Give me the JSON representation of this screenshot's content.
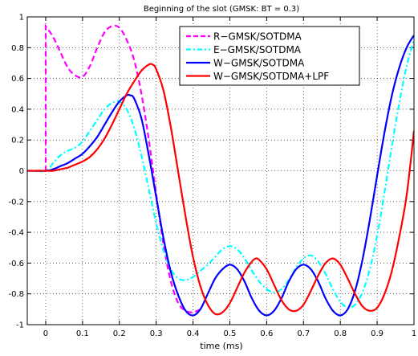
{
  "chart_data": {
    "type": "line",
    "title": "Beginning of the slot (GMSK: BT = 0.3)",
    "xlabel": "time (ms)",
    "ylabel": "",
    "xlim": [
      -0.05,
      1.0
    ],
    "ylim": [
      -1.0,
      1.0
    ],
    "xticks": [
      0,
      0.1,
      0.2,
      0.3,
      0.4,
      0.5,
      0.6,
      0.7,
      0.8,
      0.9,
      1
    ],
    "yticks": [
      -1,
      -0.8,
      -0.6,
      -0.4,
      -0.2,
      0,
      0.2,
      0.4,
      0.6,
      0.8,
      1
    ],
    "grid": true,
    "legend_position": "top-right",
    "series": [
      {
        "name": "R−GMSK/SOTDMA",
        "color": "#ff00ff",
        "style": "dashed",
        "points": [
          [
            -0.05,
            0
          ],
          [
            0,
            0
          ],
          [
            0,
            0.94
          ],
          [
            0.02,
            0.87
          ],
          [
            0.04,
            0.77
          ],
          [
            0.06,
            0.67
          ],
          [
            0.08,
            0.62
          ],
          [
            0.1,
            0.61
          ],
          [
            0.12,
            0.68
          ],
          [
            0.14,
            0.8
          ],
          [
            0.16,
            0.9
          ],
          [
            0.18,
            0.94
          ],
          [
            0.2,
            0.93
          ],
          [
            0.22,
            0.85
          ],
          [
            0.24,
            0.72
          ],
          [
            0.26,
            0.5
          ],
          [
            0.28,
            0.2
          ],
          [
            0.3,
            -0.15
          ],
          [
            0.32,
            -0.48
          ],
          [
            0.34,
            -0.72
          ],
          [
            0.36,
            -0.86
          ],
          [
            0.38,
            -0.91
          ],
          [
            0.4,
            -0.92
          ],
          [
            0.42,
            -0.9
          ]
        ]
      },
      {
        "name": "E−GMSK/SOTDMA",
        "color": "#00ffff",
        "style": "dashdot",
        "points": [
          [
            -0.05,
            0
          ],
          [
            0,
            0
          ],
          [
            0.02,
            0.05
          ],
          [
            0.04,
            0.1
          ],
          [
            0.06,
            0.13
          ],
          [
            0.08,
            0.15
          ],
          [
            0.1,
            0.19
          ],
          [
            0.12,
            0.26
          ],
          [
            0.14,
            0.33
          ],
          [
            0.16,
            0.4
          ],
          [
            0.18,
            0.44
          ],
          [
            0.2,
            0.45
          ],
          [
            0.22,
            0.4
          ],
          [
            0.24,
            0.28
          ],
          [
            0.26,
            0.1
          ],
          [
            0.28,
            -0.12
          ],
          [
            0.3,
            -0.34
          ],
          [
            0.32,
            -0.52
          ],
          [
            0.34,
            -0.64
          ],
          [
            0.36,
            -0.7
          ],
          [
            0.38,
            -0.71
          ],
          [
            0.4,
            -0.69
          ],
          [
            0.42,
            -0.65
          ],
          [
            0.44,
            -0.61
          ],
          [
            0.46,
            -0.56
          ],
          [
            0.48,
            -0.51
          ],
          [
            0.5,
            -0.49
          ],
          [
            0.52,
            -0.51
          ],
          [
            0.54,
            -0.57
          ],
          [
            0.56,
            -0.65
          ],
          [
            0.58,
            -0.72
          ],
          [
            0.6,
            -0.77
          ],
          [
            0.62,
            -0.79
          ],
          [
            0.64,
            -0.77
          ],
          [
            0.66,
            -0.71
          ],
          [
            0.68,
            -0.63
          ],
          [
            0.7,
            -0.57
          ],
          [
            0.72,
            -0.55
          ],
          [
            0.74,
            -0.59
          ],
          [
            0.76,
            -0.67
          ],
          [
            0.78,
            -0.77
          ],
          [
            0.8,
            -0.85
          ],
          [
            0.82,
            -0.89
          ],
          [
            0.84,
            -0.87
          ],
          [
            0.86,
            -0.79
          ],
          [
            0.88,
            -0.64
          ],
          [
            0.9,
            -0.42
          ],
          [
            0.92,
            -0.14
          ],
          [
            0.94,
            0.16
          ],
          [
            0.96,
            0.44
          ],
          [
            0.98,
            0.68
          ],
          [
            1.0,
            0.85
          ]
        ]
      },
      {
        "name": "W−GMSK/SOTDMA",
        "color": "#0000ff",
        "style": "solid",
        "points": [
          [
            -0.05,
            0
          ],
          [
            0,
            0
          ],
          [
            0.02,
            0.01
          ],
          [
            0.04,
            0.03
          ],
          [
            0.06,
            0.05
          ],
          [
            0.08,
            0.08
          ],
          [
            0.1,
            0.11
          ],
          [
            0.12,
            0.16
          ],
          [
            0.14,
            0.22
          ],
          [
            0.16,
            0.3
          ],
          [
            0.18,
            0.38
          ],
          [
            0.2,
            0.45
          ],
          [
            0.22,
            0.49
          ],
          [
            0.23,
            0.49
          ],
          [
            0.24,
            0.47
          ],
          [
            0.26,
            0.34
          ],
          [
            0.28,
            0.1
          ],
          [
            0.3,
            -0.17
          ],
          [
            0.32,
            -0.44
          ],
          [
            0.34,
            -0.66
          ],
          [
            0.36,
            -0.81
          ],
          [
            0.38,
            -0.91
          ],
          [
            0.4,
            -0.94
          ],
          [
            0.42,
            -0.9
          ],
          [
            0.44,
            -0.8
          ],
          [
            0.46,
            -0.7
          ],
          [
            0.48,
            -0.64
          ],
          [
            0.5,
            -0.61
          ],
          [
            0.52,
            -0.64
          ],
          [
            0.54,
            -0.72
          ],
          [
            0.56,
            -0.83
          ],
          [
            0.58,
            -0.91
          ],
          [
            0.6,
            -0.94
          ],
          [
            0.62,
            -0.91
          ],
          [
            0.64,
            -0.83
          ],
          [
            0.66,
            -0.72
          ],
          [
            0.68,
            -0.64
          ],
          [
            0.7,
            -0.61
          ],
          [
            0.72,
            -0.64
          ],
          [
            0.74,
            -0.72
          ],
          [
            0.76,
            -0.83
          ],
          [
            0.78,
            -0.91
          ],
          [
            0.8,
            -0.94
          ],
          [
            0.82,
            -0.9
          ],
          [
            0.84,
            -0.78
          ],
          [
            0.86,
            -0.58
          ],
          [
            0.88,
            -0.32
          ],
          [
            0.9,
            -0.03
          ],
          [
            0.92,
            0.25
          ],
          [
            0.94,
            0.49
          ],
          [
            0.96,
            0.67
          ],
          [
            0.98,
            0.8
          ],
          [
            1.0,
            0.88
          ]
        ]
      },
      {
        "name": "W−GMSK/SOTDMA+LPF",
        "color": "#ff0000",
        "style": "solid",
        "points": [
          [
            -0.05,
            0
          ],
          [
            0,
            0
          ],
          [
            0.02,
            0.0
          ],
          [
            0.04,
            0.01
          ],
          [
            0.06,
            0.02
          ],
          [
            0.08,
            0.04
          ],
          [
            0.1,
            0.06
          ],
          [
            0.12,
            0.09
          ],
          [
            0.14,
            0.14
          ],
          [
            0.16,
            0.21
          ],
          [
            0.18,
            0.3
          ],
          [
            0.2,
            0.4
          ],
          [
            0.22,
            0.5
          ],
          [
            0.24,
            0.58
          ],
          [
            0.26,
            0.65
          ],
          [
            0.28,
            0.69
          ],
          [
            0.29,
            0.69
          ],
          [
            0.3,
            0.66
          ],
          [
            0.32,
            0.52
          ],
          [
            0.34,
            0.28
          ],
          [
            0.36,
            -0.01
          ],
          [
            0.38,
            -0.3
          ],
          [
            0.4,
            -0.56
          ],
          [
            0.42,
            -0.75
          ],
          [
            0.44,
            -0.87
          ],
          [
            0.46,
            -0.93
          ],
          [
            0.48,
            -0.92
          ],
          [
            0.5,
            -0.86
          ],
          [
            0.52,
            -0.76
          ],
          [
            0.54,
            -0.66
          ],
          [
            0.56,
            -0.59
          ],
          [
            0.57,
            -0.57
          ],
          [
            0.58,
            -0.58
          ],
          [
            0.6,
            -0.64
          ],
          [
            0.62,
            -0.74
          ],
          [
            0.64,
            -0.84
          ],
          [
            0.66,
            -0.9
          ],
          [
            0.68,
            -0.91
          ],
          [
            0.7,
            -0.87
          ],
          [
            0.72,
            -0.78
          ],
          [
            0.74,
            -0.68
          ],
          [
            0.76,
            -0.6
          ],
          [
            0.78,
            -0.57
          ],
          [
            0.8,
            -0.61
          ],
          [
            0.82,
            -0.7
          ],
          [
            0.84,
            -0.8
          ],
          [
            0.86,
            -0.88
          ],
          [
            0.88,
            -0.91
          ],
          [
            0.9,
            -0.89
          ],
          [
            0.92,
            -0.8
          ],
          [
            0.94,
            -0.65
          ],
          [
            0.96,
            -0.43
          ],
          [
            0.98,
            -0.16
          ],
          [
            1.0,
            0.26
          ]
        ]
      }
    ]
  }
}
